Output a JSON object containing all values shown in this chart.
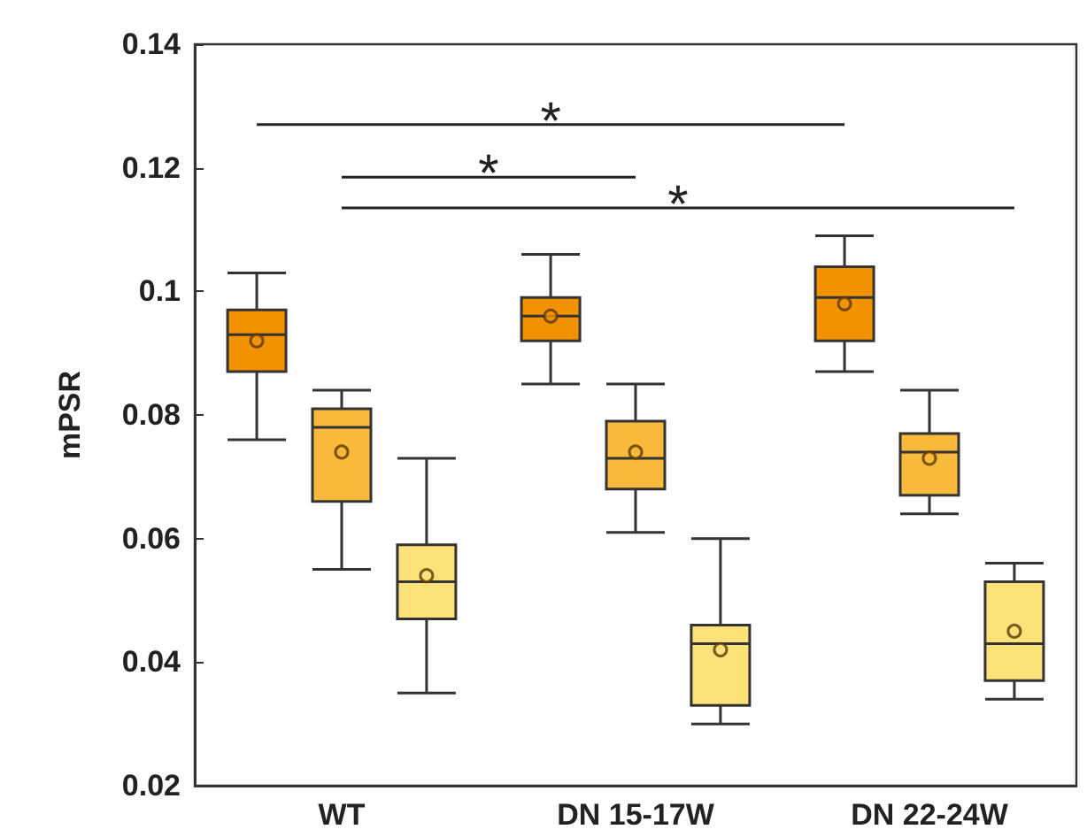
{
  "chart_data": {
    "type": "box",
    "ylabel": "mPSR",
    "categories": [
      "WT",
      "DN 15-17W",
      "DN 22-24W"
    ],
    "series": [
      {
        "color": "#f39200",
        "boxes": [
          {
            "low": 0.076,
            "q1": 0.087,
            "median": 0.093,
            "q3": 0.097,
            "high": 0.103,
            "mean": 0.092
          },
          {
            "low": 0.085,
            "q1": 0.092,
            "median": 0.096,
            "q3": 0.099,
            "high": 0.106,
            "mean": 0.096
          },
          {
            "low": 0.087,
            "q1": 0.092,
            "median": 0.099,
            "q3": 0.104,
            "high": 0.109,
            "mean": 0.098
          }
        ]
      },
      {
        "color": "#f9b93a",
        "boxes": [
          {
            "low": 0.055,
            "q1": 0.066,
            "median": 0.078,
            "q3": 0.081,
            "high": 0.084,
            "mean": 0.074
          },
          {
            "low": 0.061,
            "q1": 0.068,
            "median": 0.073,
            "q3": 0.079,
            "high": 0.085,
            "mean": 0.074
          },
          {
            "low": 0.064,
            "q1": 0.067,
            "median": 0.074,
            "q3": 0.077,
            "high": 0.084,
            "mean": 0.073
          }
        ]
      },
      {
        "color": "#fde27a",
        "boxes": [
          {
            "low": 0.035,
            "q1": 0.047,
            "median": 0.053,
            "q3": 0.059,
            "high": 0.073,
            "mean": 0.054
          },
          {
            "low": 0.03,
            "q1": 0.033,
            "median": 0.043,
            "q3": 0.046,
            "high": 0.06,
            "mean": 0.042
          },
          {
            "low": 0.034,
            "q1": 0.037,
            "median": 0.043,
            "q3": 0.053,
            "high": 0.056,
            "mean": 0.045
          }
        ]
      }
    ],
    "ylim": [
      0.02,
      0.14
    ],
    "yticks": [
      0.02,
      0.04,
      0.06,
      0.08,
      0.1,
      0.12,
      0.14
    ],
    "grid": false,
    "marker": "circle",
    "annotations": [
      "*",
      "*",
      "*"
    ]
  }
}
